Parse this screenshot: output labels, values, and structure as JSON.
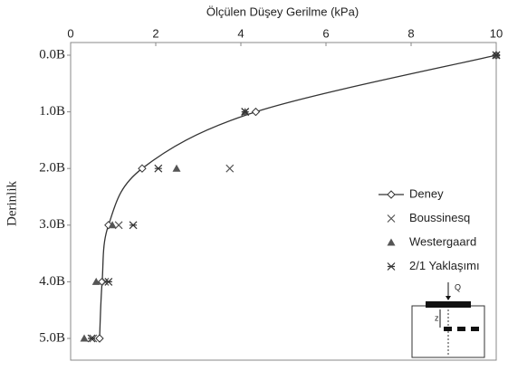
{
  "chart_data": {
    "type": "line",
    "title": "Ölçülen Düşey Gerilme (kPa)",
    "y_label": "Derinlik",
    "categories": [
      "0.0B",
      "1.0B",
      "2.0B",
      "3.0B",
      "4.0B",
      "5.0B"
    ],
    "series": [
      {
        "name": "Deney",
        "color": "#333333",
        "marker": "diamond",
        "line": true,
        "values": [
          10,
          4.35,
          1.68,
          0.89,
          0.74,
          0.68
        ]
      },
      {
        "name": "Boussinesq",
        "color": "#555555",
        "marker": "x",
        "line": false,
        "values": [
          10,
          4.1,
          3.74,
          1.13,
          0.81,
          0.53
        ]
      },
      {
        "name": "Westergaard",
        "color": "#555555",
        "marker": "triangle",
        "line": false,
        "values": [
          10,
          4.1,
          2.49,
          0.98,
          0.6,
          0.32
        ]
      },
      {
        "name": "2/1 Yaklaşımı",
        "color": "#333333",
        "marker": "asterisk",
        "line": false,
        "values": [
          10,
          4.1,
          2.06,
          1.47,
          0.89,
          0.49
        ]
      }
    ],
    "xlim": [
      0,
      10
    ],
    "xticks": [
      0,
      2,
      4,
      6,
      8,
      10
    ],
    "legend": "right",
    "inset": {
      "load": "Q",
      "depth": "z"
    }
  }
}
